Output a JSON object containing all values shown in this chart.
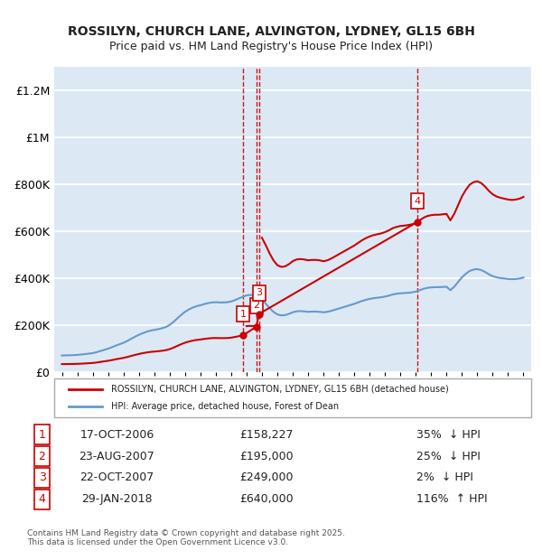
{
  "title1": "ROSSILYN, CHURCH LANE, ALVINGTON, LYDNEY, GL15 6BH",
  "title2": "Price paid vs. HM Land Registry's House Price Index (HPI)",
  "ylabel_ticks": [
    "£0",
    "£200K",
    "£400K",
    "£600K",
    "£800K",
    "£1M",
    "£1.2M"
  ],
  "ylabel_values": [
    0,
    200000,
    400000,
    600000,
    800000,
    1000000,
    1200000
  ],
  "ymax": 1300000,
  "xmin": 1994.5,
  "xmax": 2025.5,
  "background_color": "#dce9f5",
  "plot_bg": "#dce9f5",
  "grid_color": "#ffffff",
  "sale_color": "#cc0000",
  "hpi_color": "#6699cc",
  "dashed_line_color": "#cc0000",
  "legend_sale": "ROSSILYN, CHURCH LANE, ALVINGTON, LYDNEY, GL15 6BH (detached house)",
  "legend_hpi": "HPI: Average price, detached house, Forest of Dean",
  "transactions": [
    {
      "num": 1,
      "date": "17-OCT-2006",
      "price": 158227,
      "pct": "35%",
      "dir": "↓",
      "year": 2006.79
    },
    {
      "num": 2,
      "date": "23-AUG-2007",
      "price": 195000,
      "pct": "25%",
      "dir": "↓",
      "year": 2007.64
    },
    {
      "num": 3,
      "date": "22-OCT-2007",
      "price": 249000,
      "pct": "2%",
      "dir": "↓",
      "year": 2007.81
    },
    {
      "num": 4,
      "date": "29-JAN-2018",
      "price": 640000,
      "pct": "116%",
      "dir": "↑",
      "year": 2018.08
    }
  ],
  "footer1": "Contains HM Land Registry data © Crown copyright and database right 2025.",
  "footer2": "This data is licensed under the Open Government Licence v3.0.",
  "hpi_data_x": [
    1995.0,
    1995.25,
    1995.5,
    1995.75,
    1996.0,
    1996.25,
    1996.5,
    1996.75,
    1997.0,
    1997.25,
    1997.5,
    1997.75,
    1998.0,
    1998.25,
    1998.5,
    1998.75,
    1999.0,
    1999.25,
    1999.5,
    1999.75,
    2000.0,
    2000.25,
    2000.5,
    2000.75,
    2001.0,
    2001.25,
    2001.5,
    2001.75,
    2002.0,
    2002.25,
    2002.5,
    2002.75,
    2003.0,
    2003.25,
    2003.5,
    2003.75,
    2004.0,
    2004.25,
    2004.5,
    2004.75,
    2005.0,
    2005.25,
    2005.5,
    2005.75,
    2006.0,
    2006.25,
    2006.5,
    2006.75,
    2007.0,
    2007.25,
    2007.5,
    2007.75,
    2008.0,
    2008.25,
    2008.5,
    2008.75,
    2009.0,
    2009.25,
    2009.5,
    2009.75,
    2010.0,
    2010.25,
    2010.5,
    2010.75,
    2011.0,
    2011.25,
    2011.5,
    2011.75,
    2012.0,
    2012.25,
    2012.5,
    2012.75,
    2013.0,
    2013.25,
    2013.5,
    2013.75,
    2014.0,
    2014.25,
    2014.5,
    2014.75,
    2015.0,
    2015.25,
    2015.5,
    2015.75,
    2016.0,
    2016.25,
    2016.5,
    2016.75,
    2017.0,
    2017.25,
    2017.5,
    2017.75,
    2018.0,
    2018.25,
    2018.5,
    2018.75,
    2019.0,
    2019.25,
    2019.5,
    2019.75,
    2020.0,
    2020.25,
    2020.5,
    2020.75,
    2021.0,
    2021.25,
    2021.5,
    2021.75,
    2022.0,
    2022.25,
    2022.5,
    2022.75,
    2023.0,
    2023.25,
    2023.5,
    2023.75,
    2024.0,
    2024.25,
    2024.5,
    2024.75,
    2025.0
  ],
  "hpi_data_y": [
    72000,
    72500,
    73000,
    73500,
    74500,
    76000,
    78000,
    80000,
    82000,
    86000,
    91000,
    96000,
    101000,
    107000,
    114000,
    120000,
    126000,
    134000,
    143000,
    152000,
    160000,
    167000,
    173000,
    178000,
    181000,
    184000,
    188000,
    193000,
    202000,
    215000,
    230000,
    245000,
    258000,
    268000,
    276000,
    282000,
    286000,
    291000,
    295000,
    298000,
    299000,
    298000,
    298000,
    299000,
    302000,
    308000,
    315000,
    322000,
    328000,
    330000,
    328000,
    322000,
    310000,
    293000,
    274000,
    258000,
    247000,
    243000,
    244000,
    249000,
    256000,
    260000,
    261000,
    260000,
    258000,
    259000,
    259000,
    258000,
    256000,
    258000,
    262000,
    267000,
    272000,
    277000,
    282000,
    287000,
    292000,
    298000,
    304000,
    309000,
    313000,
    316000,
    318000,
    320000,
    323000,
    327000,
    332000,
    335000,
    337000,
    338000,
    339000,
    341000,
    344000,
    350000,
    356000,
    360000,
    362000,
    363000,
    363000,
    364000,
    365000,
    350000,
    365000,
    385000,
    405000,
    420000,
    432000,
    438000,
    440000,
    436000,
    428000,
    418000,
    410000,
    405000,
    402000,
    400000,
    398000,
    397000,
    398000,
    400000,
    404000
  ],
  "sale_data_x": [
    2006.79,
    2007.64,
    2007.81,
    2018.08
  ],
  "sale_data_y": [
    158227,
    195000,
    249000,
    640000
  ]
}
